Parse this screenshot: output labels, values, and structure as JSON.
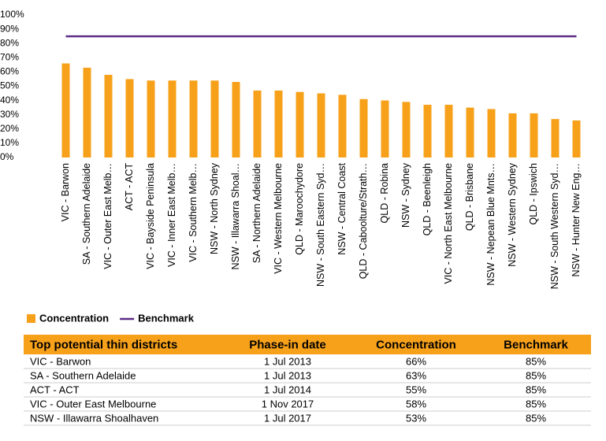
{
  "chart_data": {
    "type": "bar",
    "categories": [
      "VIC - Barwon",
      "SA - Southern Adelaide",
      "VIC - Outer East Melb…",
      "ACT - ACT",
      "VIC - Bayside Peninsula",
      "VIC - Inner East Melb…",
      "VIC - Southern Melb…",
      "NSW - North Sydney",
      "NSW - Illawarra Shoal…",
      "SA - Northern Adelaide",
      "VIC - Western Melbourne",
      "QLD - Maroochydore",
      "NSW - South Eastern Syd…",
      "NSW - Central Coast",
      "QLD - Caboolture/Strath…",
      "QLD - Robina",
      "NSW - Sydney",
      "QLD - Beenleigh",
      "VIC - North East Melbourne",
      "QLD - Brisbane",
      "NSW - Nepean Blue Mnts…",
      "NSW - Western Sydney",
      "QLD - Ipswich",
      "NSW - South Western Syd…",
      "NSW - Hunter New Eng…"
    ],
    "series": [
      {
        "name": "Concentration",
        "type": "bar",
        "color": "#f7a11a",
        "values": [
          66,
          63,
          58,
          55,
          54,
          54,
          54,
          54,
          53,
          47,
          47,
          46,
          45,
          44,
          41,
          40,
          39,
          37,
          37,
          35,
          34,
          31,
          31,
          27,
          26
        ]
      },
      {
        "name": "Benchmark",
        "type": "line",
        "color": "#5b2a86",
        "values": [
          85,
          85,
          85,
          85,
          85,
          85,
          85,
          85,
          85,
          85,
          85,
          85,
          85,
          85,
          85,
          85,
          85,
          85,
          85,
          85,
          85,
          85,
          85,
          85,
          85
        ]
      }
    ],
    "ylim": [
      0,
      100
    ],
    "yticks": [
      {
        "value": 0,
        "label": "0%"
      },
      {
        "value": 10,
        "label": "10%"
      },
      {
        "value": 20,
        "label": "20%"
      },
      {
        "value": 30,
        "label": "30%"
      },
      {
        "value": 40,
        "label": "40%"
      },
      {
        "value": 50,
        "label": "50%"
      },
      {
        "value": 60,
        "label": "60%"
      },
      {
        "value": 70,
        "label": "70%"
      },
      {
        "value": 80,
        "label": "80%"
      },
      {
        "value": 90,
        "label": "90%"
      },
      {
        "value": 100,
        "label": "100%"
      }
    ],
    "grid": false,
    "legend": "bottom-left"
  },
  "table": {
    "columns": [
      "Top potential thin districts",
      "Phase-in date",
      "Concentration",
      "Benchmark"
    ],
    "rows": [
      [
        "VIC - Barwon",
        "1 Jul 2013",
        "66%",
        "85%"
      ],
      [
        "SA - Southern Adelaide",
        "1 Jul 2013",
        "63%",
        "85%"
      ],
      [
        "ACT - ACT",
        "1 Jul 2014",
        "55%",
        "85%"
      ],
      [
        "VIC - Outer East Melbourne",
        "1 Nov 2017",
        "58%",
        "85%"
      ],
      [
        "NSW - Illawarra Shoalhaven",
        "1 Jul 2017",
        "53%",
        "85%"
      ]
    ]
  }
}
